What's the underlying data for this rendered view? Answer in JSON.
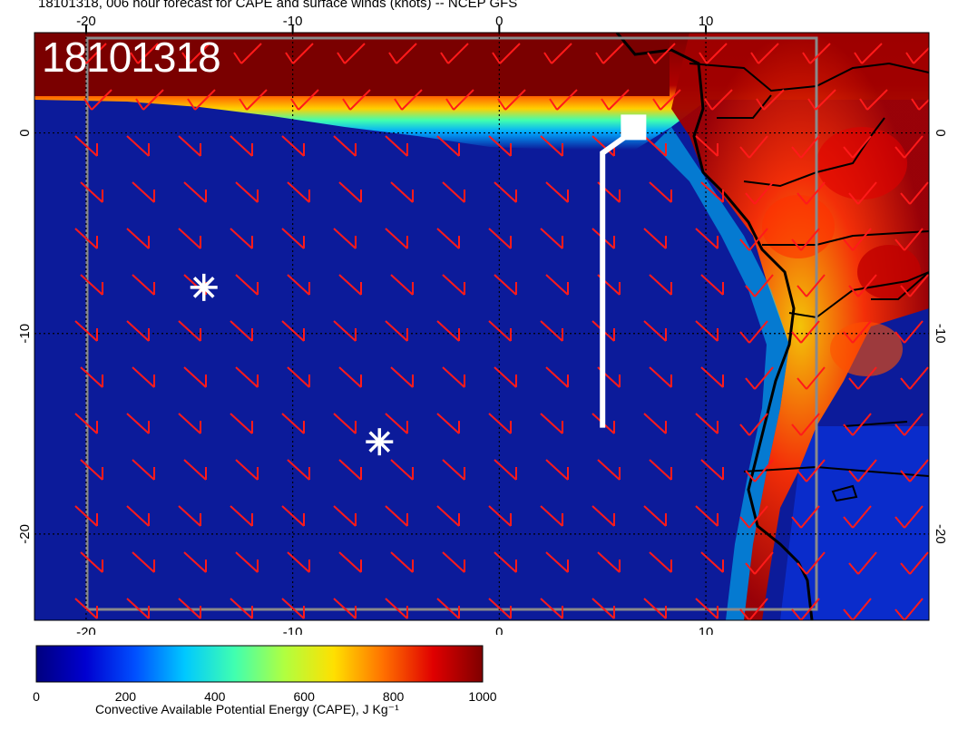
{
  "header": {
    "title": "18101318, 006 hour forecast for CAPE and surface winds (knots) -- NCEP GFS"
  },
  "map": {
    "stamp": "18101318",
    "projection_note": "",
    "lon_ticks_top": [
      "-20",
      "-10",
      "0",
      "10"
    ],
    "lon_ticks_bottom": [
      "-20",
      "-10",
      "0",
      "10"
    ],
    "lat_ticks_left": [
      "0",
      "-10",
      "-20"
    ],
    "lat_ticks_right": [
      "0",
      "-10",
      "-20"
    ],
    "lon_range": [
      -22.5,
      20.8
    ],
    "lat_range": [
      -24.3,
      5.0
    ],
    "grid_lons": [
      -20,
      -10,
      0,
      10
    ],
    "grid_lats": [
      0,
      -10,
      -20
    ],
    "markers": [
      {
        "type": "asterisk",
        "lon": -14.3,
        "lat": -7.7
      },
      {
        "type": "asterisk",
        "lon": -5.8,
        "lat": -15.4
      }
    ],
    "track": {
      "color": "#ffffff",
      "points": [
        {
          "lon": 5.0,
          "lat": -14.7
        },
        {
          "lon": 5.0,
          "lat": -1.0
        },
        {
          "lon": 6.5,
          "lat": 0.1
        }
      ],
      "end_marker": "square"
    },
    "wind_barb_color": "#ff1a1a",
    "colors": {
      "ocean_low": "#0c1b9a",
      "high": "#7a0000"
    }
  },
  "colorbar": {
    "label": "Convective Available Potential Energy (CAPE), J Kg⁻¹",
    "ticks": [
      "0",
      "200",
      "400",
      "600",
      "800",
      "1000"
    ],
    "range": [
      0,
      1000
    ],
    "stops": [
      "#00007f",
      "#0000d0",
      "#0050ff",
      "#00c8ff",
      "#40ffb0",
      "#b0ff40",
      "#ffe000",
      "#ff7000",
      "#e00000",
      "#7f0000"
    ]
  }
}
